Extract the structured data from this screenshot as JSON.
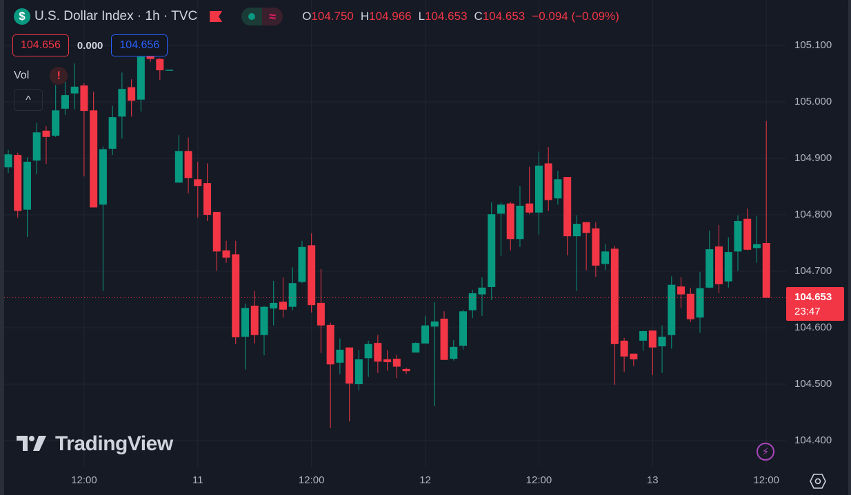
{
  "header": {
    "symbol_icon": "$",
    "title": "U.S. Dollar Index · 1h · TVC",
    "flag_icon": "flag-icon",
    "status_icons": [
      "market-open-dot-icon",
      "delayed-data-icon"
    ],
    "ohlc": {
      "o_label": "O",
      "o": "104.750",
      "h_label": "H",
      "h": "104.966",
      "l_label": "L",
      "l": "104.653",
      "c_label": "C",
      "c": "104.653",
      "change": "−0.094 (−0.09%)"
    }
  },
  "trade": {
    "sell": "104.656",
    "spread": "0.000",
    "buy": "104.656"
  },
  "indicator": {
    "label": "Vol",
    "warning_icon": "!",
    "collapse_icon": "^"
  },
  "logo": "TradingView",
  "last_price": {
    "value": "104.653",
    "countdown": "23:47"
  },
  "colors": {
    "up": "#089981",
    "down": "#f23645",
    "background": "#161a25",
    "grid": "#232632"
  },
  "chart_data": {
    "type": "candlestick",
    "title": "U.S. Dollar Index · 1h · TVC",
    "interval": "1h",
    "ylim": [
      104.375,
      105.13
    ],
    "y_ticks": [
      "105.100",
      "105.000",
      "104.900",
      "104.800",
      "104.700",
      "104.600",
      "104.500",
      "104.400"
    ],
    "x_ticks": [
      {
        "label": "12:00",
        "index": 8
      },
      {
        "label": "11",
        "index": 20
      },
      {
        "label": "12:00",
        "index": 32
      },
      {
        "label": "12",
        "index": 44
      },
      {
        "label": "12:00",
        "index": 56
      },
      {
        "label": "13",
        "index": 68
      },
      {
        "label": "12:00",
        "index": 80
      }
    ],
    "grid": true,
    "last_price_line": 104.653,
    "ohlc": [
      [
        104.884,
        104.915,
        104.874,
        104.907
      ],
      [
        104.906,
        104.91,
        104.795,
        104.807
      ],
      [
        104.809,
        104.902,
        104.761,
        104.894
      ],
      [
        104.896,
        104.963,
        104.872,
        104.946
      ],
      [
        104.949,
        104.957,
        104.89,
        104.938
      ],
      [
        104.94,
        105.03,
        104.938,
        104.985
      ],
      [
        104.988,
        105.051,
        104.977,
        105.012
      ],
      [
        105.015,
        105.068,
        104.987,
        105.027
      ],
      [
        105.029,
        105.033,
        104.868,
        104.984
      ],
      [
        104.985,
        105.018,
        104.813,
        104.813
      ],
      [
        104.818,
        104.921,
        104.665,
        104.916
      ],
      [
        104.917,
        104.993,
        104.906,
        104.973
      ],
      [
        104.974,
        105.052,
        104.935,
        105.023
      ],
      [
        105.026,
        105.04,
        104.974,
        105.002
      ],
      [
        105.004,
        105.083,
        104.983,
        105.08
      ],
      [
        105.083,
        105.093,
        105.071,
        105.076
      ],
      [
        105.076,
        105.078,
        105.039,
        105.056
      ],
      [
        105.056,
        105.057,
        105.055,
        105.057
      ],
      [
        104.857,
        104.941,
        104.857,
        104.913
      ],
      [
        104.913,
        104.937,
        104.838,
        104.865
      ],
      [
        104.863,
        104.894,
        104.795,
        104.851
      ],
      [
        104.856,
        104.891,
        104.789,
        104.8
      ],
      [
        104.805,
        104.805,
        104.701,
        104.735
      ],
      [
        104.737,
        104.754,
        104.715,
        104.724
      ],
      [
        104.73,
        104.754,
        104.571,
        104.583
      ],
      [
        104.584,
        104.643,
        104.526,
        104.635
      ],
      [
        104.639,
        104.665,
        104.572,
        104.587
      ],
      [
        104.587,
        104.638,
        104.551,
        104.637
      ],
      [
        104.634,
        104.683,
        104.604,
        104.644
      ],
      [
        104.646,
        104.689,
        104.618,
        104.632
      ],
      [
        104.637,
        104.707,
        104.631,
        104.679
      ],
      [
        104.681,
        104.754,
        104.679,
        104.743
      ],
      [
        104.746,
        104.767,
        104.627,
        104.64
      ],
      [
        104.644,
        104.704,
        104.555,
        104.604
      ],
      [
        104.605,
        104.609,
        104.422,
        104.535
      ],
      [
        104.538,
        104.581,
        104.518,
        104.561
      ],
      [
        104.565,
        104.565,
        104.434,
        104.501
      ],
      [
        104.5,
        104.56,
        104.489,
        104.544
      ],
      [
        104.546,
        104.577,
        104.513,
        104.571
      ],
      [
        104.573,
        104.587,
        104.52,
        104.54
      ],
      [
        104.544,
        104.56,
        104.524,
        104.539
      ],
      [
        104.545,
        104.552,
        104.511,
        104.531
      ],
      [
        104.527,
        104.529,
        104.518,
        104.523
      ],
      [
        104.556,
        104.574,
        104.556,
        104.573
      ],
      [
        104.572,
        104.621,
        104.572,
        104.604
      ],
      [
        104.602,
        104.645,
        104.461,
        104.611
      ],
      [
        104.616,
        104.629,
        104.543,
        104.543
      ],
      [
        104.545,
        104.578,
        104.542,
        104.566
      ],
      [
        104.568,
        104.632,
        104.561,
        104.629
      ],
      [
        104.631,
        104.667,
        104.617,
        104.661
      ],
      [
        104.659,
        104.689,
        104.621,
        104.671
      ],
      [
        104.672,
        104.822,
        104.649,
        104.801
      ],
      [
        104.802,
        104.822,
        104.727,
        104.818
      ],
      [
        104.82,
        104.823,
        104.737,
        104.757
      ],
      [
        104.757,
        104.851,
        104.743,
        104.816
      ],
      [
        104.82,
        104.885,
        104.801,
        104.804
      ],
      [
        104.804,
        104.912,
        104.765,
        104.887
      ],
      [
        104.891,
        104.92,
        104.807,
        104.826
      ],
      [
        104.829,
        104.878,
        104.818,
        104.863
      ],
      [
        104.867,
        104.867,
        104.728,
        104.762
      ],
      [
        104.762,
        104.799,
        104.665,
        104.784
      ],
      [
        104.787,
        104.787,
        104.702,
        104.768
      ],
      [
        104.776,
        104.787,
        104.69,
        104.71
      ],
      [
        104.713,
        104.748,
        104.702,
        104.735
      ],
      [
        104.74,
        104.745,
        104.499,
        104.571
      ],
      [
        104.577,
        104.582,
        104.522,
        104.549
      ],
      [
        104.554,
        104.554,
        104.532,
        104.544
      ],
      [
        104.577,
        104.595,
        104.559,
        104.594
      ],
      [
        104.595,
        104.595,
        104.516,
        104.565
      ],
      [
        104.567,
        104.604,
        104.52,
        104.584
      ],
      [
        104.587,
        104.691,
        104.563,
        104.676
      ],
      [
        104.673,
        104.69,
        104.635,
        104.659
      ],
      [
        104.66,
        104.671,
        104.61,
        104.615
      ],
      [
        104.618,
        104.699,
        104.591,
        104.67
      ],
      [
        104.671,
        104.772,
        104.67,
        104.739
      ],
      [
        104.744,
        104.782,
        104.661,
        104.677
      ],
      [
        104.682,
        104.76,
        104.671,
        104.734
      ],
      [
        104.735,
        104.799,
        104.701,
        104.789
      ],
      [
        104.793,
        104.811,
        104.737,
        104.738
      ],
      [
        104.741,
        104.798,
        104.715,
        104.748
      ],
      [
        104.75,
        104.966,
        104.653,
        104.653
      ]
    ]
  }
}
